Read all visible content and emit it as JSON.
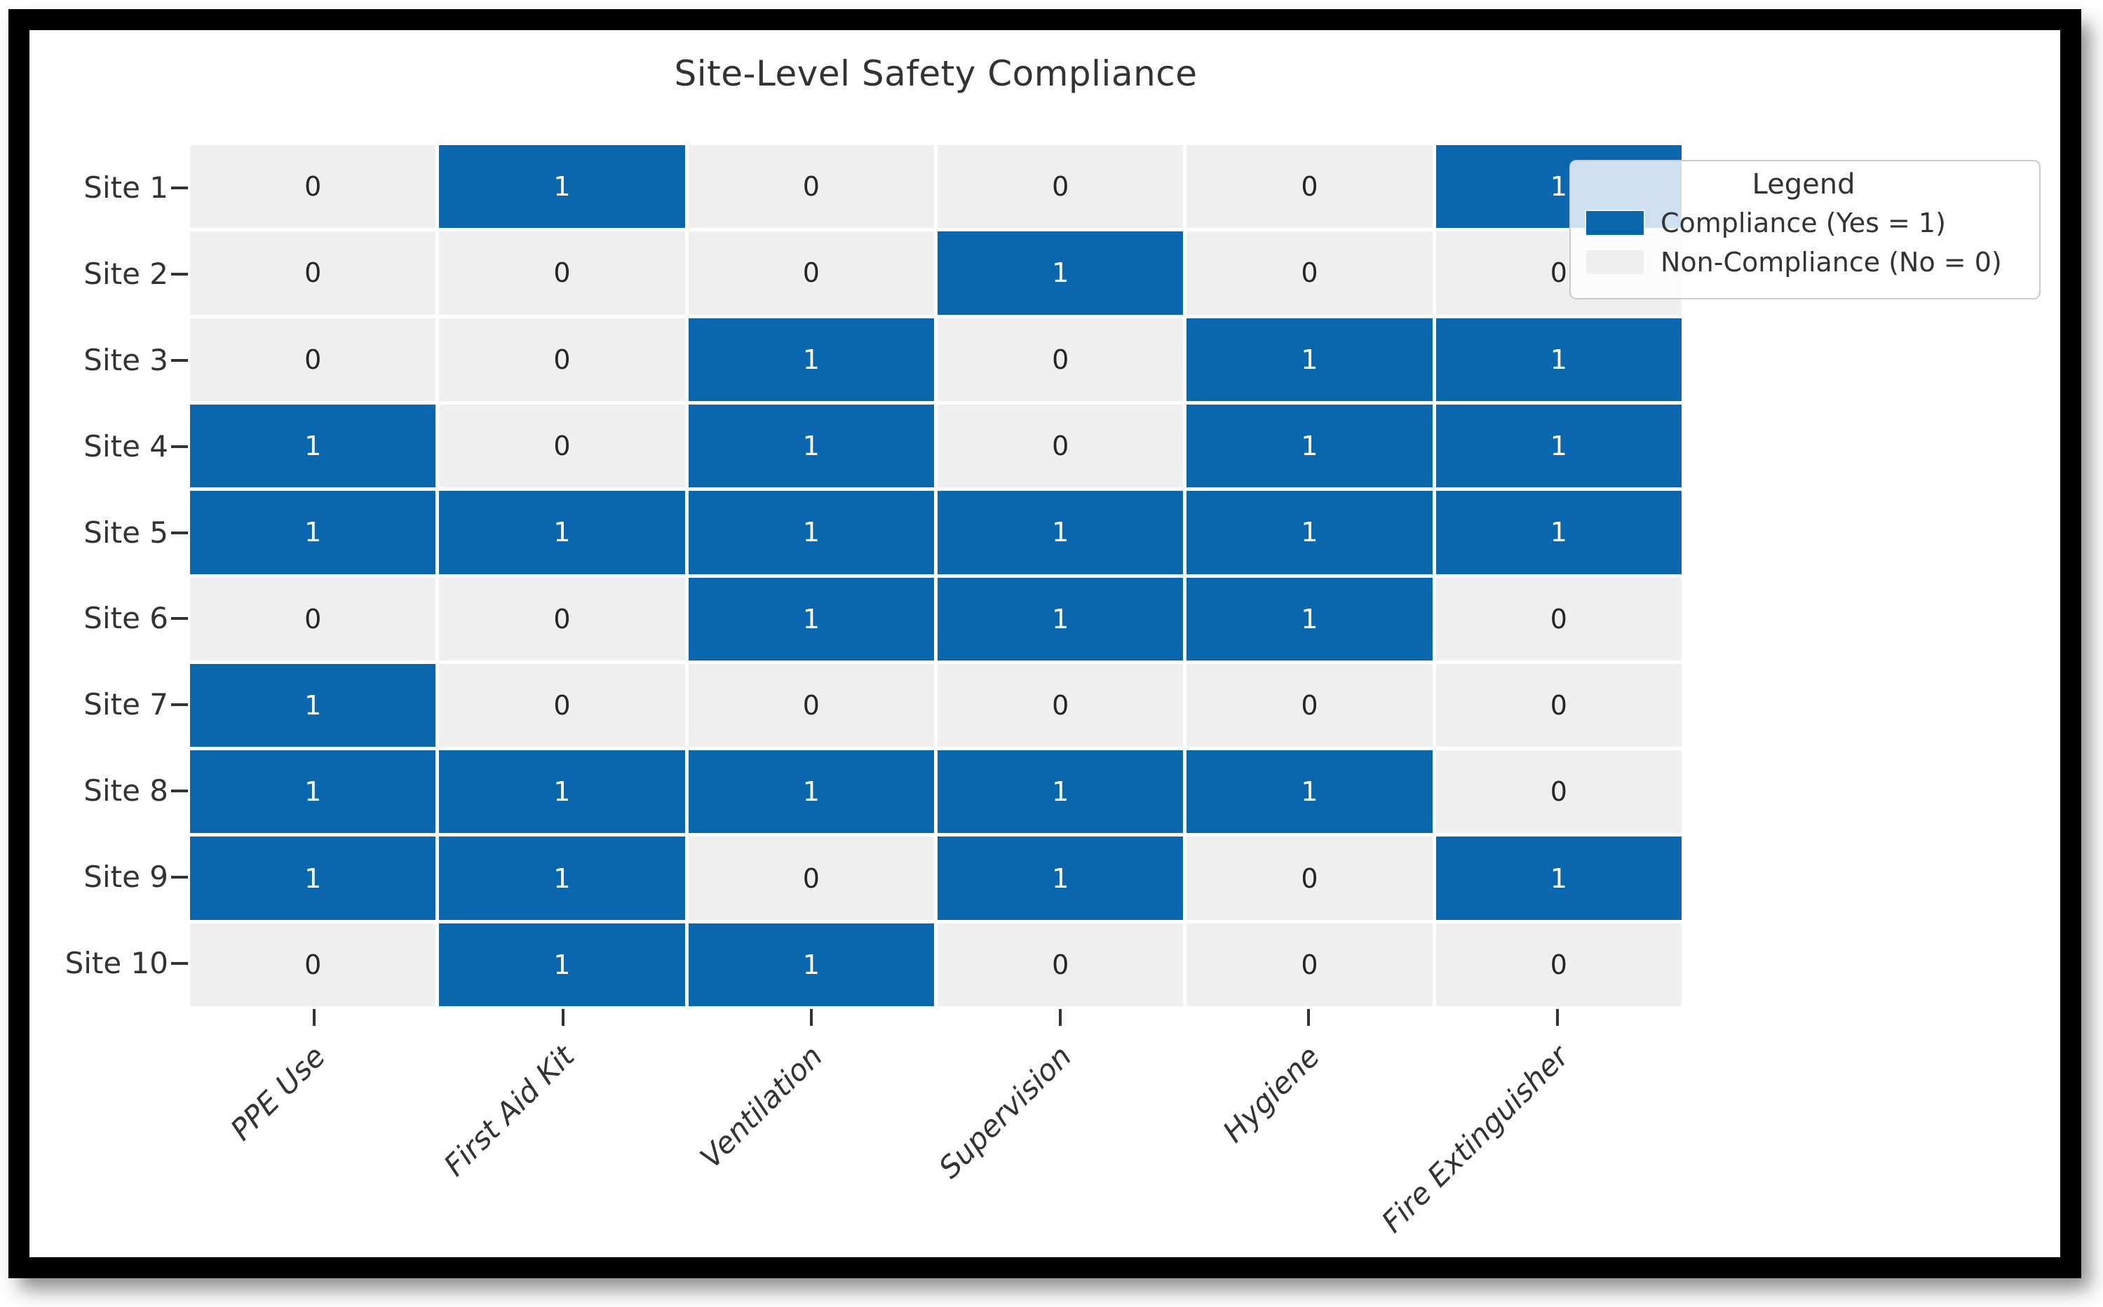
{
  "chart_data": {
    "type": "heatmap",
    "title": "Site-Level Safety Compliance",
    "x_categories": [
      "PPE Use",
      "First Aid Kit",
      "Ventilation",
      "Supervision",
      "Hygiene",
      "Fire Extinguisher"
    ],
    "y_categories": [
      "Site 1",
      "Site 2",
      "Site 3",
      "Site 4",
      "Site 5",
      "Site 6",
      "Site 7",
      "Site 8",
      "Site 9",
      "Site 10"
    ],
    "values": [
      [
        0,
        1,
        0,
        0,
        0,
        1
      ],
      [
        0,
        0,
        0,
        1,
        0,
        0
      ],
      [
        0,
        0,
        1,
        0,
        1,
        1
      ],
      [
        1,
        0,
        1,
        0,
        1,
        1
      ],
      [
        1,
        1,
        1,
        1,
        1,
        1
      ],
      [
        0,
        0,
        1,
        1,
        1,
        0
      ],
      [
        1,
        0,
        0,
        0,
        0,
        0
      ],
      [
        1,
        1,
        1,
        1,
        1,
        0
      ],
      [
        1,
        1,
        0,
        1,
        0,
        1
      ],
      [
        0,
        1,
        1,
        0,
        0,
        0
      ]
    ],
    "value_range": [
      0,
      1
    ],
    "grid": "white cell separators",
    "legend": {
      "title": "Legend",
      "position": "upper right",
      "entries": [
        {
          "label": "Compliance (Yes = 1)",
          "color": "#0a67ad"
        },
        {
          "label": "Non-Compliance (No = 0)",
          "color": "#efefef"
        }
      ]
    },
    "colors": {
      "compliance": "#0a67ad",
      "non_compliance": "#efefef",
      "annotation_on_blue": "#ffffff",
      "annotation_on_gray": "#262626",
      "text": "#333333",
      "frame": "#000000"
    }
  }
}
